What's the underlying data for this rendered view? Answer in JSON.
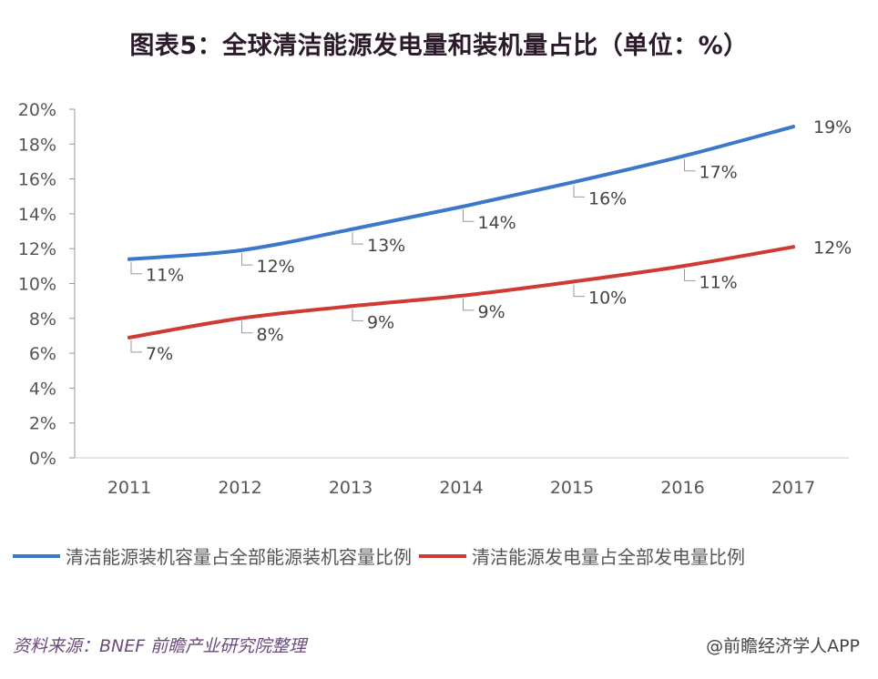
{
  "title": "图表5：全球清洁能源发电量和装机量占比（单位：%）",
  "chart_data": {
    "type": "line",
    "title": "图表5：全球清洁能源发电量和装机量占比（单位：%）",
    "xlabel": "",
    "ylabel": "",
    "categories": [
      "2011",
      "2012",
      "2013",
      "2014",
      "2015",
      "2016",
      "2017"
    ],
    "ylim": [
      0,
      20
    ],
    "yticks": [
      0,
      2,
      4,
      6,
      8,
      10,
      12,
      14,
      16,
      18,
      20
    ],
    "ytick_labels": [
      "0%",
      "2%",
      "4%",
      "6%",
      "8%",
      "10%",
      "12%",
      "14%",
      "16%",
      "18%",
      "20%"
    ],
    "grid": false,
    "legend_position": "bottom",
    "series": [
      {
        "name": "清洁能源装机容量占全部能源装机容量比例",
        "color": "#3b78c9",
        "values": [
          11.4,
          11.9,
          13.1,
          14.4,
          15.8,
          17.3,
          19.0
        ],
        "labels": [
          "11%",
          "12%",
          "13%",
          "14%",
          "16%",
          "17%",
          "19%"
        ]
      },
      {
        "name": "清洁能源发电量占全部发电量比例",
        "color": "#cf3a34",
        "values": [
          6.9,
          8.0,
          8.7,
          9.3,
          10.1,
          11.0,
          12.1
        ],
        "labels": [
          "7%",
          "8%",
          "9%",
          "9%",
          "10%",
          "11%",
          "12%"
        ]
      }
    ]
  },
  "footer": {
    "source": "资料来源：BNEF 前瞻产业研究院整理",
    "credit": "@前瞻经济学人APP"
  }
}
